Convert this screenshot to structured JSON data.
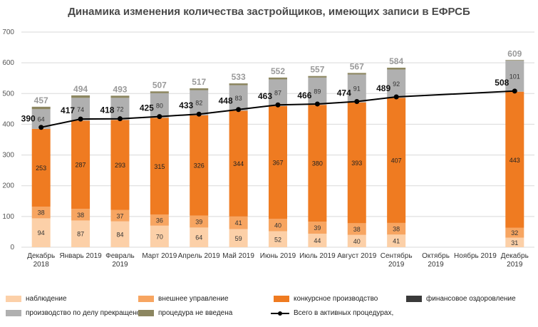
{
  "chart_data": {
    "type": "bar",
    "title": "Динамика изменения количества застройщиков, имеющих записи в ЕФРСБ",
    "xlabel": "",
    "ylabel": "",
    "ylim": [
      0,
      700
    ],
    "yticks": [
      "0",
      "100",
      "200",
      "300",
      "400",
      "500",
      "600",
      "700"
    ],
    "grid": true,
    "legend_position": "bottom",
    "categories": [
      "Декабрь 2018",
      "Январь 2019",
      "Февраль 2019",
      "Март 2019",
      "Апрель 2019",
      "Май 2019",
      "Июнь 2019",
      "Июль 2019",
      "Август 2019",
      "Сентябрь 2019",
      "Октябрь 2019",
      "Ноябрь 2019",
      "Декабрь 2019"
    ],
    "category_lines": [
      [
        "Декабрь",
        "2018"
      ],
      [
        "Январь 2019"
      ],
      [
        "Февраль",
        "2019"
      ],
      [
        "Март 2019"
      ],
      [
        "Апрель 2019"
      ],
      [
        "Май 2019"
      ],
      [
        "Июнь 2019"
      ],
      [
        "Июль 2019"
      ],
      [
        "Август 2019"
      ],
      [
        "Сентябрь",
        "2019"
      ],
      [
        "Октябрь",
        "2019"
      ],
      [
        "Ноябрь 2019"
      ],
      [
        "Декабрь",
        "2019"
      ]
    ],
    "series": [
      {
        "name": "наблюдение",
        "color": "#fcd0a8",
        "values": [
          94,
          87,
          84,
          70,
          64,
          59,
          52,
          44,
          40,
          41,
          null,
          null,
          31
        ]
      },
      {
        "name": "внешнее управление",
        "color": "#f7a561",
        "values": [
          38,
          38,
          37,
          36,
          39,
          41,
          40,
          39,
          38,
          38,
          null,
          null,
          32
        ]
      },
      {
        "name": "конкурсное производство",
        "color": "#ef7b21",
        "values": [
          253,
          287,
          293,
          315,
          326,
          344,
          367,
          380,
          393,
          407,
          null,
          null,
          443
        ]
      },
      {
        "name": "финансовое оздоровление",
        "color": "#3a3a3a",
        "values": [
          0,
          0,
          0,
          0,
          0,
          0,
          0,
          0,
          0,
          0,
          null,
          null,
          0
        ]
      },
      {
        "name": "производство по делу прекращено",
        "color": "#b0b0b0",
        "values": [
          64,
          74,
          72,
          80,
          82,
          83,
          87,
          89,
          91,
          92,
          null,
          null,
          101
        ]
      },
      {
        "name": "процедура не введена",
        "color": "#8c8660",
        "values": [
          8,
          8,
          7,
          6,
          6,
          6,
          6,
          5,
          5,
          6,
          null,
          null,
          2
        ]
      }
    ],
    "totals": [
      457,
      494,
      493,
      507,
      517,
      533,
      552,
      557,
      567,
      584,
      null,
      null,
      609
    ],
    "line_series": {
      "name": "Всего в активных процедурах,",
      "color": "#000000",
      "values": [
        390,
        417,
        418,
        425,
        433,
        448,
        463,
        466,
        474,
        489,
        null,
        null,
        508
      ]
    }
  }
}
